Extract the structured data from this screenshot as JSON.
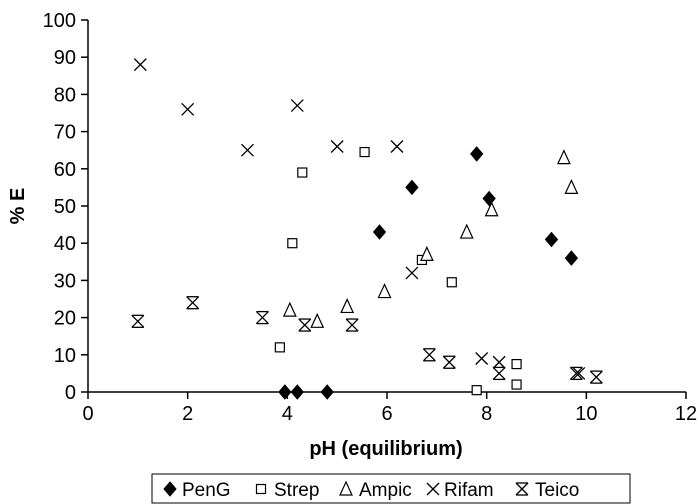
{
  "chart_data": {
    "type": "scatter",
    "title": "",
    "xlabel": "pH (equilibrium)",
    "ylabel": "% E",
    "xlim": [
      0,
      12
    ],
    "ylim": [
      0,
      100
    ],
    "xticks": [
      0,
      2,
      4,
      6,
      8,
      10,
      12
    ],
    "yticks": [
      0,
      10,
      20,
      30,
      40,
      50,
      60,
      70,
      80,
      90,
      100
    ],
    "grid": false,
    "legend_position": "bottom",
    "series": [
      {
        "name": "PenG",
        "marker": "filled-diamond",
        "points": [
          [
            3.95,
            0
          ],
          [
            4.2,
            0
          ],
          [
            4.8,
            0
          ],
          [
            5.85,
            43
          ],
          [
            6.5,
            55
          ],
          [
            7.8,
            64
          ],
          [
            8.05,
            52
          ],
          [
            9.3,
            41
          ],
          [
            9.7,
            36
          ]
        ]
      },
      {
        "name": "Strep",
        "marker": "open-square",
        "points": [
          [
            3.85,
            12
          ],
          [
            4.1,
            40
          ],
          [
            4.3,
            59
          ],
          [
            5.55,
            64.5
          ],
          [
            6.7,
            35.5
          ],
          [
            7.3,
            29.5
          ],
          [
            7.8,
            0.5
          ],
          [
            8.6,
            2
          ],
          [
            8.6,
            7.5
          ]
        ]
      },
      {
        "name": "Ampic",
        "marker": "open-triangle",
        "points": [
          [
            4.05,
            22
          ],
          [
            4.6,
            19
          ],
          [
            5.2,
            23
          ],
          [
            5.95,
            27
          ],
          [
            6.8,
            37
          ],
          [
            7.6,
            43
          ],
          [
            8.1,
            49
          ],
          [
            9.55,
            63
          ],
          [
            9.7,
            55
          ]
        ]
      },
      {
        "name": "Rifam",
        "marker": "x",
        "points": [
          [
            1.05,
            88
          ],
          [
            2.0,
            76
          ],
          [
            3.2,
            65
          ],
          [
            4.2,
            77
          ],
          [
            5.0,
            66
          ],
          [
            6.2,
            66
          ],
          [
            6.5,
            32
          ],
          [
            7.9,
            9
          ],
          [
            8.25,
            8
          ],
          [
            9.85,
            5
          ]
        ]
      },
      {
        "name": "Teico",
        "marker": "asterisk",
        "points": [
          [
            1.0,
            19
          ],
          [
            2.1,
            24
          ],
          [
            3.5,
            20
          ],
          [
            4.35,
            18
          ],
          [
            5.3,
            18
          ],
          [
            6.85,
            10
          ],
          [
            7.25,
            8
          ],
          [
            8.25,
            5
          ],
          [
            9.8,
            5
          ],
          [
            10.2,
            4
          ]
        ]
      }
    ]
  }
}
